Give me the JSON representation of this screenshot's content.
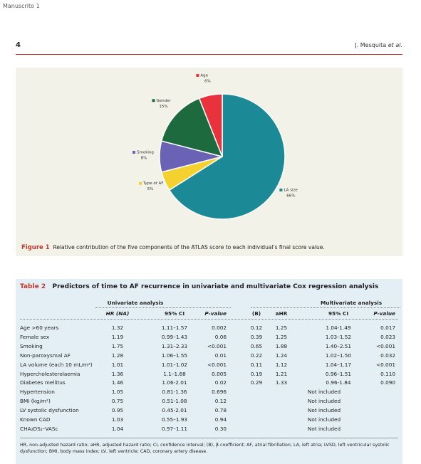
{
  "header": {
    "running_title": "Manuscrito 1",
    "page_number": "4",
    "author": "J. Mesquita",
    "author_suffix": "et al."
  },
  "figure": {
    "chart_data": {
      "type": "pie",
      "categories": [
        "LA size",
        "Type of AF",
        "Smoking",
        "Gender",
        "Age"
      ],
      "values": [
        66,
        5,
        8,
        15,
        6
      ],
      "value_labels": [
        "66%",
        "5%",
        "8%",
        "15%",
        "6%"
      ],
      "colors": [
        "#1b8a96",
        "#f5d130",
        "#6a62b4",
        "#1d6a3e",
        "#e8323c"
      ]
    },
    "label": "Figure 1",
    "caption": "Relative contribution of the five components of the ATLAS score to each individual's final score value."
  },
  "table": {
    "label": "Table 2",
    "title": "Predictors of time to AF recurrence in univariate and multivariate Cox regression analysis",
    "groups": [
      "Univariate analysis",
      "Multivariate analysis"
    ],
    "columns": [
      "HR (NA)",
      "95% CI",
      "P-value",
      "(B)",
      "aHR",
      "95% CI",
      "P-value"
    ],
    "rows": [
      [
        "Age >60 years",
        "1.32",
        "1.11–1.57",
        "0.002",
        "0.12",
        "1.25",
        "1.04-1.49",
        "0.017"
      ],
      [
        "Female sex",
        "1.19",
        "0.99–1.43",
        "0.06",
        "0.39",
        "1.25",
        "1.03–1.52",
        "0.023"
      ],
      [
        "Smoking",
        "1.75",
        "1.31–2.33",
        "<0.001",
        "0.65",
        "1.88",
        "1.40–2.51",
        "<0.001"
      ],
      [
        "Non-paroxysmal AF",
        "1.28",
        "1.06–1.55",
        "0.01",
        "0.22",
        "1.24",
        "1.02–1.50",
        "0.032"
      ],
      [
        "LA volume (each 10 mL/m²)",
        "1.01",
        "1.01–1.02",
        "<0.001",
        "0.11",
        "1.12",
        "1.04–1.17",
        "<0.001"
      ],
      [
        "Hypercholesterolaemia",
        "1.36",
        "1.1–1.68",
        "0.005",
        "0.19",
        "1.21",
        "0.96–1.51",
        "0.110"
      ],
      [
        "Diabetes mellitus",
        "1.46",
        "1.06-2.01",
        "0.02",
        "0.29",
        "1.33",
        "0.96-1.84",
        "0.090"
      ],
      [
        "Hypertension",
        "1.05",
        "0.81-1.36",
        "0.696",
        "Not included"
      ],
      [
        "BMI (kg/m²)",
        "0.75",
        "0.51-1.08",
        "0.12",
        "Not included"
      ],
      [
        "LV systolic dysfunction",
        "0.95",
        "0.45-2.01",
        "0.78",
        "Not included"
      ],
      [
        "Known CAD",
        "1.03",
        "0.55–1.93",
        "0.94",
        "Not included"
      ],
      [
        "CHA₂DS₂–VASc",
        "1.04",
        "0.97–1.11",
        "0.30",
        "Not included"
      ]
    ],
    "footnote": "HR, non-adjusted hazard ratio; aHR, adjusted hazard ratio; CI, confidence interval; (B), β coefficient; AF, atrial fibrillation; LA, left atria; LVSD, left ventricular systolic dysfunction; BMI, body mass index; LV, left ventricle; CAD, coronary artery disease."
  }
}
